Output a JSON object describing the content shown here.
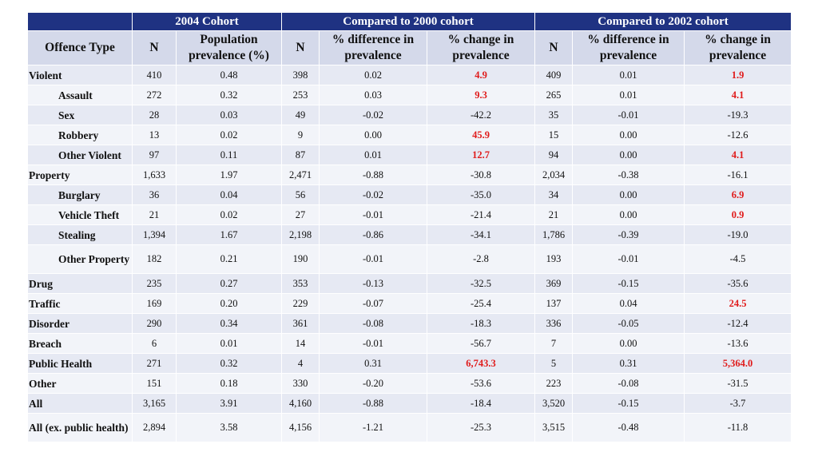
{
  "header": {
    "groups": [
      "2004 Cohort",
      "Compared to 2000 cohort",
      "Compared to 2002 cohort"
    ],
    "columns": [
      "Offence Type",
      "N",
      "Population prevalence (%)",
      "N",
      "% difference in prevalence",
      "% change in prevalence",
      "N",
      "% difference in prevalence",
      "% change in prevalence"
    ]
  },
  "highlight_color": "#e01b1b",
  "rows": [
    {
      "label": "Violent",
      "sub": false,
      "cells": [
        "410",
        "0.48",
        "398",
        "0.02",
        "4.9",
        "409",
        "0.01",
        "1.9"
      ],
      "red": [
        4,
        7
      ]
    },
    {
      "label": "Assault",
      "sub": true,
      "cells": [
        "272",
        "0.32",
        "253",
        "0.03",
        "9.3",
        "265",
        "0.01",
        "4.1"
      ],
      "red": [
        4,
        7
      ]
    },
    {
      "label": "Sex",
      "sub": true,
      "cells": [
        "28",
        "0.03",
        "49",
        "-0.02",
        "-42.2",
        "35",
        "-0.01",
        "-19.3"
      ],
      "red": []
    },
    {
      "label": "Robbery",
      "sub": true,
      "cells": [
        "13",
        "0.02",
        "9",
        "0.00",
        "45.9",
        "15",
        "0.00",
        "-12.6"
      ],
      "red": [
        4
      ]
    },
    {
      "label": "Other Violent",
      "sub": true,
      "cells": [
        "97",
        "0.11",
        "87",
        "0.01",
        "12.7",
        "94",
        "0.00",
        "4.1"
      ],
      "red": [
        4,
        7
      ]
    },
    {
      "label": "Property",
      "sub": false,
      "cells": [
        "1,633",
        "1.97",
        "2,471",
        "-0.88",
        "-30.8",
        "2,034",
        "-0.38",
        "-16.1"
      ],
      "red": []
    },
    {
      "label": "Burglary",
      "sub": true,
      "cells": [
        "36",
        "0.04",
        "56",
        "-0.02",
        "-35.0",
        "34",
        "0.00",
        "6.9"
      ],
      "red": [
        7
      ]
    },
    {
      "label": "Vehicle Theft",
      "sub": true,
      "cells": [
        "21",
        "0.02",
        "27",
        "-0.01",
        "-21.4",
        "21",
        "0.00",
        "0.9"
      ],
      "red": [
        7
      ]
    },
    {
      "label": "Stealing",
      "sub": true,
      "cells": [
        "1,394",
        "1.67",
        "2,198",
        "-0.86",
        "-34.1",
        "1,786",
        "-0.39",
        "-19.0"
      ],
      "red": []
    },
    {
      "label": "Other Property",
      "sub": true,
      "tall": true,
      "cells": [
        "182",
        "0.21",
        "190",
        "-0.01",
        "-2.8",
        "193",
        "-0.01",
        "-4.5"
      ],
      "red": []
    },
    {
      "label": "Drug",
      "sub": false,
      "cells": [
        "235",
        "0.27",
        "353",
        "-0.13",
        "-32.5",
        "369",
        "-0.15",
        "-35.6"
      ],
      "red": []
    },
    {
      "label": "Traffic",
      "sub": false,
      "cells": [
        "169",
        "0.20",
        "229",
        "-0.07",
        "-25.4",
        "137",
        "0.04",
        "24.5"
      ],
      "red": [
        7
      ]
    },
    {
      "label": "Disorder",
      "sub": false,
      "cells": [
        "290",
        "0.34",
        "361",
        "-0.08",
        "-18.3",
        "336",
        "-0.05",
        "-12.4"
      ],
      "red": []
    },
    {
      "label": "Breach",
      "sub": false,
      "cells": [
        "6",
        "0.01",
        "14",
        "-0.01",
        "-56.7",
        "7",
        "0.00",
        "-13.6"
      ],
      "red": []
    },
    {
      "label": "Public Health",
      "sub": false,
      "cells": [
        "271",
        "0.32",
        "4",
        "0.31",
        "6,743.3",
        "5",
        "0.31",
        "5,364.0"
      ],
      "red": [
        4,
        7
      ]
    },
    {
      "label": "Other",
      "sub": false,
      "cells": [
        "151",
        "0.18",
        "330",
        "-0.20",
        "-53.6",
        "223",
        "-0.08",
        "-31.5"
      ],
      "red": []
    },
    {
      "label": "All",
      "sub": false,
      "cells": [
        "3,165",
        "3.91",
        "4,160",
        "-0.88",
        "-18.4",
        "3,520",
        "-0.15",
        "-3.7"
      ],
      "red": []
    },
    {
      "label": "All (ex. public health)",
      "sub": false,
      "tall": true,
      "cells": [
        "2,894",
        "3.58",
        "4,156",
        "-1.21",
        "-25.3",
        "3,515",
        "-0.48",
        "-11.8"
      ],
      "red": []
    }
  ]
}
